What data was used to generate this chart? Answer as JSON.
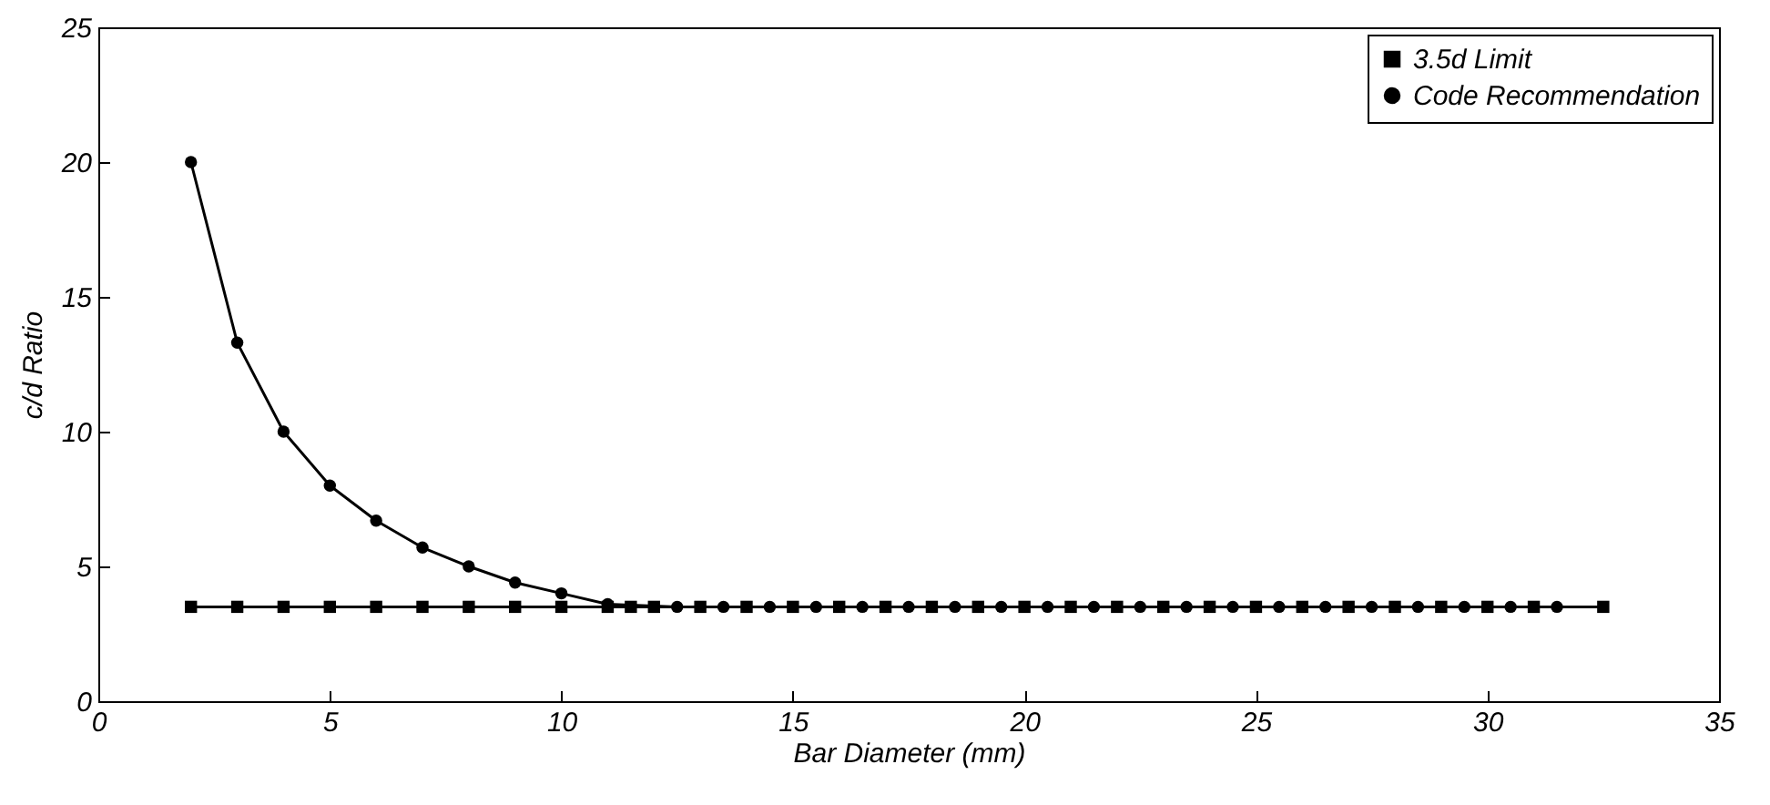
{
  "chart_data": {
    "type": "line",
    "xlabel": "Bar Diameter (mm)",
    "ylabel": "c/d Ratio",
    "xlim": [
      0,
      35
    ],
    "xticks": [
      0,
      5,
      10,
      15,
      20,
      25,
      30,
      35
    ],
    "ylim": [
      0,
      25
    ],
    "yticks": [
      0,
      5,
      10,
      15,
      20,
      25
    ],
    "grid": false,
    "legend": "top right",
    "line_style": "solid",
    "series": [
      {
        "name": "3.5d Limit",
        "color": "#000000",
        "marker": "square",
        "x": [
          2,
          3,
          4,
          5,
          6,
          7,
          8,
          9,
          10,
          11,
          11.5,
          12,
          13,
          14,
          15,
          16,
          17,
          18,
          19,
          20,
          21,
          22,
          23,
          24,
          25,
          26,
          27,
          28,
          29,
          30,
          31,
          32.5
        ],
        "values": [
          3.5,
          3.5,
          3.5,
          3.5,
          3.5,
          3.5,
          3.5,
          3.5,
          3.5,
          3.5,
          3.5,
          3.5,
          3.5,
          3.5,
          3.5,
          3.5,
          3.5,
          3.5,
          3.5,
          3.5,
          3.5,
          3.5,
          3.5,
          3.5,
          3.5,
          3.5,
          3.5,
          3.5,
          3.5,
          3.5,
          3.5,
          3.5
        ]
      },
      {
        "name": "Code Recommendation",
        "color": "#000000",
        "marker": "circle",
        "x": [
          2,
          3,
          4,
          5,
          6,
          7,
          8,
          9,
          10,
          11,
          12.5,
          13.5,
          14.5,
          15.5,
          16.5,
          17.5,
          18.5,
          19.5,
          20.5,
          21.5,
          22.5,
          23.5,
          24.5,
          25.5,
          26.5,
          27.5,
          28.5,
          29.5,
          30.5,
          31.5
        ],
        "values": [
          20,
          13.3,
          10,
          8,
          6.7,
          5.7,
          5,
          4.4,
          4,
          3.6,
          3.5,
          3.5,
          3.5,
          3.5,
          3.5,
          3.5,
          3.5,
          3.5,
          3.5,
          3.5,
          3.5,
          3.5,
          3.5,
          3.5,
          3.5,
          3.5,
          3.5,
          3.5,
          3.5,
          3.5
        ]
      }
    ]
  }
}
